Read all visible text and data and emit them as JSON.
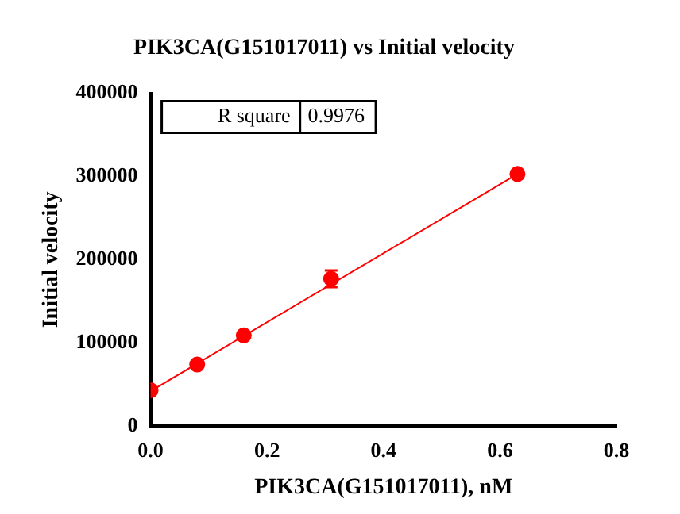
{
  "chart_data": {
    "type": "scatter",
    "title": "PIK3CA(G151017011) vs Initial velocity",
    "xlabel": "PIK3CA(G151017011), nM",
    "ylabel": "Initial velocity",
    "annotations": [
      "R square",
      "0.9976"
    ],
    "series": [
      {
        "type": "scatter",
        "color": "#ff0000",
        "marker": "circle",
        "x": [
          0,
          0.08,
          0.16,
          0.31,
          0.63
        ],
        "values": [
          43000,
          74000,
          109000,
          177000,
          303000
        ],
        "errors": [
          null,
          null,
          null,
          10000,
          null
        ]
      },
      {
        "type": "line",
        "color": "#ff0000",
        "marker": "none",
        "line_style": "solid",
        "x": [
          0,
          0.63
        ],
        "values": [
          42000,
          303000
        ]
      }
    ],
    "xlim": [
      0,
      0.8
    ],
    "xticks": [
      {
        "value": 0,
        "label": "0.0"
      },
      {
        "value": 0.2,
        "label": "0.2"
      },
      {
        "value": 0.4,
        "label": "0.4"
      },
      {
        "value": 0.6,
        "label": "0.6"
      },
      {
        "value": 0.8,
        "label": "0.8"
      }
    ],
    "ylim": [
      0,
      400000
    ],
    "yticks": [
      0,
      100000,
      200000,
      300000,
      400000
    ],
    "grid": false,
    "legend": false
  }
}
